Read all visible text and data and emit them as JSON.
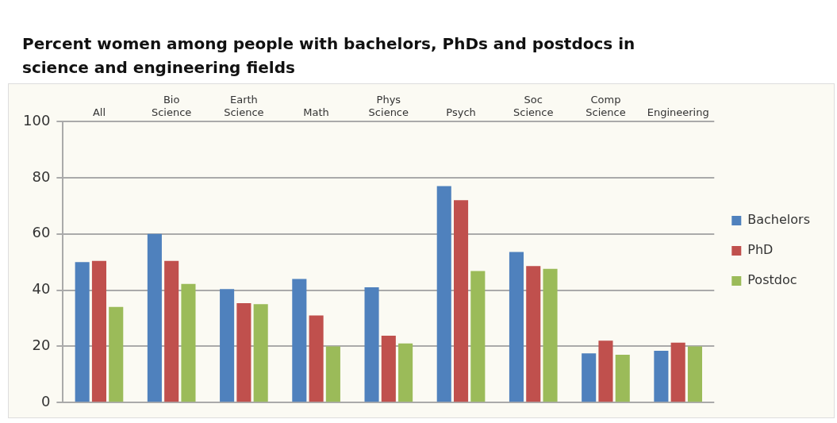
{
  "chart_data": {
    "type": "bar",
    "title": "Percent women among people with bachelors, PhDs and postdocs in science and engineering fields",
    "categories": [
      "All",
      "Bio Science",
      "Earth Science",
      "Math",
      "Phys Science",
      "Psych",
      "Soc Science",
      "Comp Science",
      "Engineering"
    ],
    "series": [
      {
        "name": "Bachelors",
        "color": "#4f81bd",
        "values": [
          50,
          60,
          40.4,
          44,
          41,
          77,
          53.6,
          17.5,
          18.4
        ]
      },
      {
        "name": "PhD",
        "color": "#c0504d",
        "values": [
          50.4,
          50.4,
          35.4,
          31,
          23.8,
          72,
          48.6,
          22,
          21.3
        ]
      },
      {
        "name": "Postdoc",
        "color": "#9bbb59",
        "values": [
          34,
          42.2,
          35,
          20,
          21,
          46.8,
          47.6,
          17,
          20
        ]
      }
    ],
    "ylim": [
      0,
      100
    ],
    "yticks": [
      0,
      20,
      40,
      60,
      80,
      100
    ],
    "grid": "y",
    "legend": "right"
  }
}
